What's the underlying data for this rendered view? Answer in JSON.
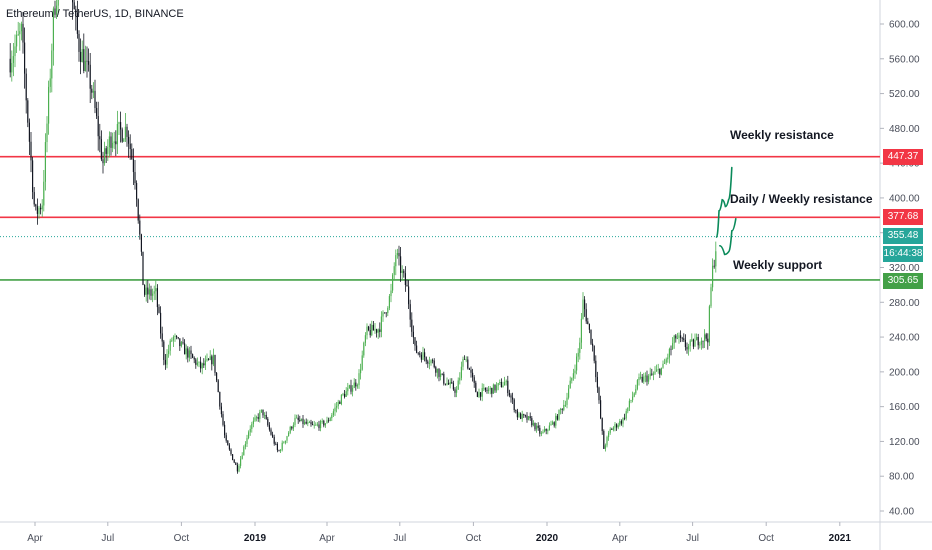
{
  "title": "Ethereum / TetherUS, 1D, BINANCE",
  "colors": {
    "up": "#26a69a",
    "candle_up_body": "#4caf50",
    "down": "#131722",
    "resistance": "#f23645",
    "support": "#43a047",
    "sketch": "#0a8a5a",
    "axis_text": "#4a4e5a"
  },
  "chart_data": {
    "type": "candlestick",
    "symbol": "ETHUSDT",
    "timeframe": "1D",
    "exchange": "BINANCE",
    "ylim": [
      20,
      640
    ],
    "y_ticks": [
      "600.00",
      "560.00",
      "520.00",
      "480.00",
      "440.00",
      "400.00",
      "360.00",
      "320.00",
      "280.00",
      "240.00",
      "200.00",
      "160.00",
      "120.00",
      "80.00",
      "40.00"
    ],
    "x_ticks": [
      "Apr",
      "Jul",
      "Oct",
      "2019",
      "Apr",
      "Jul",
      "Oct",
      "2020",
      "Apr",
      "Jul",
      "Oct",
      "2021"
    ],
    "series_path": [
      [
        "2018-03-01",
        560
      ],
      [
        "2018-03-15",
        590
      ],
      [
        "2018-04-01",
        380
      ],
      [
        "2018-04-10",
        395
      ],
      [
        "2018-04-25",
        620
      ],
      [
        "2018-05-08",
        690
      ],
      [
        "2018-05-25",
        580
      ],
      [
        "2018-06-10",
        530
      ],
      [
        "2018-06-25",
        440
      ],
      [
        "2018-07-05",
        470
      ],
      [
        "2018-07-25",
        480
      ],
      [
        "2018-08-05",
        420
      ],
      [
        "2018-08-15",
        290
      ],
      [
        "2018-08-30",
        290
      ],
      [
        "2018-09-10",
        210
      ],
      [
        "2018-09-20",
        240
      ],
      [
        "2018-10-05",
        225
      ],
      [
        "2018-10-25",
        205
      ],
      [
        "2018-11-10",
        215
      ],
      [
        "2018-11-25",
        120
      ],
      [
        "2018-12-10",
        88
      ],
      [
        "2018-12-25",
        135
      ],
      [
        "2019-01-10",
        155
      ],
      [
        "2019-01-30",
        107
      ],
      [
        "2019-02-20",
        145
      ],
      [
        "2019-03-15",
        137
      ],
      [
        "2019-04-01",
        142
      ],
      [
        "2019-04-20",
        172
      ],
      [
        "2019-05-10",
        190
      ],
      [
        "2019-05-20",
        245
      ],
      [
        "2019-06-05",
        250
      ],
      [
        "2019-06-20",
        290
      ],
      [
        "2019-06-26",
        336
      ],
      [
        "2019-07-10",
        295
      ],
      [
        "2019-07-20",
        225
      ],
      [
        "2019-08-10",
        212
      ],
      [
        "2019-08-25",
        190
      ],
      [
        "2019-09-10",
        178
      ],
      [
        "2019-09-20",
        220
      ],
      [
        "2019-10-05",
        175
      ],
      [
        "2019-10-25",
        180
      ],
      [
        "2019-11-10",
        188
      ],
      [
        "2019-11-25",
        150
      ],
      [
        "2019-12-10",
        145
      ],
      [
        "2019-12-25",
        128
      ],
      [
        "2020-01-10",
        142
      ],
      [
        "2020-01-25",
        168
      ],
      [
        "2020-02-10",
        225
      ],
      [
        "2020-02-15",
        280
      ],
      [
        "2020-02-28",
        225
      ],
      [
        "2020-03-12",
        112
      ],
      [
        "2020-03-20",
        133
      ],
      [
        "2020-04-05",
        145
      ],
      [
        "2020-04-25",
        190
      ],
      [
        "2020-05-10",
        195
      ],
      [
        "2020-05-25",
        205
      ],
      [
        "2020-06-10",
        240
      ],
      [
        "2020-06-25",
        228
      ],
      [
        "2020-07-10",
        238
      ],
      [
        "2020-07-20",
        240
      ],
      [
        "2020-07-25",
        310
      ],
      [
        "2020-07-31",
        350
      ]
    ],
    "last_close": 355.48,
    "price_labels": {
      "weekly_resistance": "447.37",
      "daily_weekly_resistance": "377.68",
      "last_price": "355.48",
      "countdown": "16:44:38",
      "weekly_support": "305.65"
    },
    "horizontal_lines": [
      {
        "name": "Weekly resistance",
        "price": 447.37,
        "color": "#f23645"
      },
      {
        "name": "Daily / Weekly resistance",
        "price": 377.68,
        "color": "#f23645"
      },
      {
        "name": "Weekly support",
        "price": 305.65,
        "color": "#43a047"
      }
    ],
    "last_price_line": {
      "price": 355.48,
      "style": "dotted"
    },
    "projection_path": [
      [
        "2020-07-31",
        355
      ],
      [
        "2020-08-03",
        385
      ],
      [
        "2020-08-07",
        398
      ],
      [
        "2020-08-11",
        390
      ],
      [
        "2020-08-15",
        398
      ],
      [
        "2020-08-19",
        435
      ]
    ],
    "projection_path_2": [
      [
        "2020-08-04",
        345
      ],
      [
        "2020-08-10",
        335
      ],
      [
        "2020-08-15",
        338
      ],
      [
        "2020-08-19",
        362
      ],
      [
        "2020-08-24",
        376
      ]
    ],
    "annotations": [
      "Weekly resistance",
      "Daily / Weekly resistance",
      "Weekly support"
    ]
  }
}
